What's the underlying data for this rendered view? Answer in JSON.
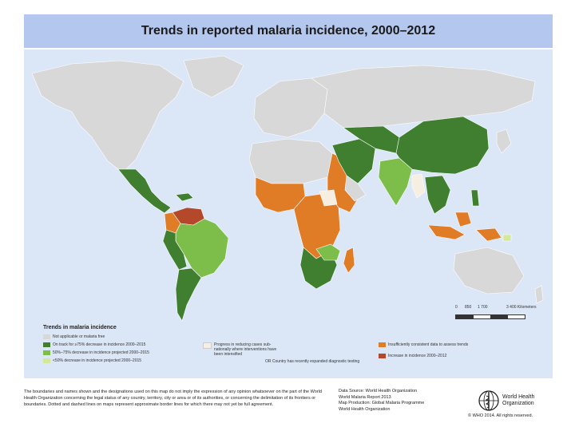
{
  "title": "Trends in reported malaria incidence, 2000–2012",
  "colors": {
    "ocean": "#dbe6f7",
    "not_applicable": "#d8d8d8",
    "on_track_75": "#3f7f2f",
    "decrease_50_75": "#7dbe4a",
    "decrease_under_50": "#d4e79a",
    "progress_subnational": "#f6eee0",
    "insufficient_data": "#e07b26",
    "increase": "#b3492a"
  },
  "scale_bar": {
    "labels": [
      "0",
      "850",
      "1 700",
      "3 400 Kilometers"
    ]
  },
  "legend": {
    "title": "Trends in malaria incidence",
    "items": [
      {
        "label": "Not applicable or malaria free",
        "color": "#d8d8d8"
      },
      {
        "label": "On track for ≥75% decrease in incidence 2000–2015",
        "color": "#3f7f2f"
      },
      {
        "label": "50%–75% decrease in incidence projected 2000–2015",
        "color": "#7dbe4a"
      },
      {
        "label": "<50% decrease in incidence projected 2000–2015",
        "color": "#d4e79a"
      },
      {
        "label": "Progress in reducing cases sub-nationally where interventions have been intensified",
        "color": "#f6eee0"
      },
      {
        "label": "OR Country has recently expanded diagnostic testing",
        "color": ""
      },
      {
        "label": "Insufficiently consistent data to assess trends",
        "color": "#e07b26"
      },
      {
        "label": "Increase in incidence 2000–2012",
        "color": "#b3492a"
      }
    ]
  },
  "footer": {
    "disclaimer": "The boundaries and names shown and the designations used on this map do not imply the expression of any opinion whatsoever on the part of the World Health Organization concerning the legal status of any country, territory, city or area or of its authorities, or concerning the delimitation of its frontiers or boundaries. Dotted and dashed lines on maps represent approximate border lines for which there may not yet be full agreement.",
    "data_source": "Data Source: World Health Organization",
    "report": "World Malaria Report 2013",
    "map_production": "Map Production: Global Malaria Programme",
    "org": "World Health Organization",
    "who_name_1": "World Health",
    "who_name_2": "Organization",
    "copyright": "© WHO 2014. All rights reserved."
  }
}
